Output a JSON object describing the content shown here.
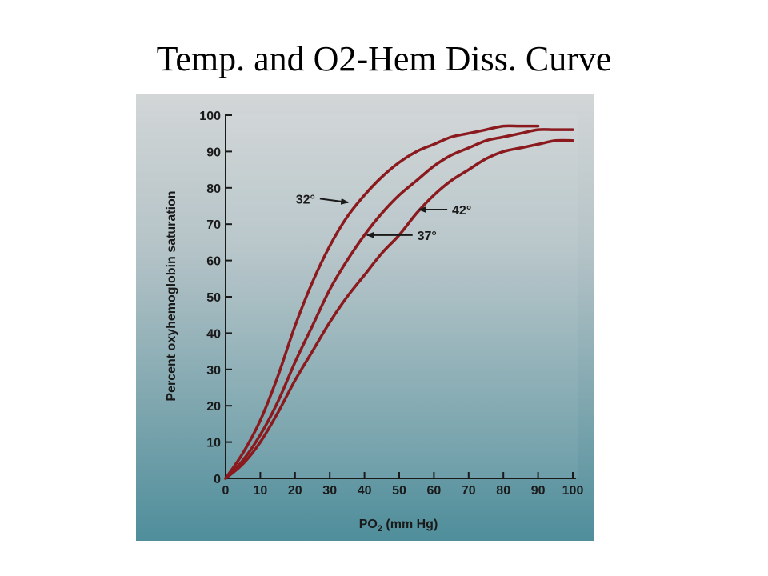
{
  "slide": {
    "title": "Temp. and O2-Hem Diss. Curve"
  },
  "chart_data": {
    "type": "line",
    "title": "",
    "xlabel": "PO2 (mm Hg)",
    "xlabel_main": "PO",
    "xlabel_sub": "2",
    "xlabel_units": " (mm Hg)",
    "ylabel": "Percent oxyhemoglobin saturation",
    "xlim": [
      0,
      100
    ],
    "ylim": [
      0,
      100
    ],
    "x_ticks": [
      "0",
      "10",
      "20",
      "30",
      "40",
      "50",
      "60",
      "70",
      "80",
      "90",
      "100"
    ],
    "y_ticks": [
      "0",
      "10",
      "20",
      "30",
      "40",
      "50",
      "60",
      "70",
      "80",
      "90",
      "100"
    ],
    "grid": false,
    "colors": {
      "curve": "#8b1a1f",
      "panel_top": "#d2d6d7",
      "panel_bottom": "#4f8e9b",
      "axis": "#1a1a1a"
    },
    "series": [
      {
        "name": "32°",
        "x": [
          0,
          5,
          10,
          15,
          20,
          25,
          30,
          35,
          40,
          45,
          50,
          55,
          60,
          65,
          70,
          75,
          80,
          85,
          90
        ],
        "values": [
          0,
          7,
          16,
          28,
          42,
          54,
          64,
          72,
          78,
          83,
          87,
          90,
          92,
          94,
          95,
          96,
          97,
          97,
          97
        ]
      },
      {
        "name": "37°",
        "x": [
          0,
          5,
          10,
          15,
          20,
          25,
          30,
          35,
          40,
          45,
          50,
          55,
          60,
          65,
          70,
          75,
          80,
          85,
          90,
          95,
          100
        ],
        "values": [
          0,
          5,
          12,
          21,
          32,
          42,
          52,
          60,
          67,
          73,
          78,
          82,
          86,
          89,
          91,
          93,
          94,
          95,
          96,
          96,
          96
        ]
      },
      {
        "name": "42°",
        "x": [
          0,
          5,
          10,
          15,
          20,
          25,
          30,
          35,
          40,
          45,
          50,
          55,
          60,
          65,
          70,
          75,
          80,
          85,
          90,
          95,
          100
        ],
        "values": [
          0,
          4,
          10,
          18,
          27,
          35,
          43,
          50,
          56,
          62,
          67,
          73,
          78,
          82,
          85,
          88,
          90,
          91,
          92,
          93,
          93
        ]
      }
    ],
    "annotations": [
      {
        "text": "32°",
        "series": "32°",
        "point_x": 36,
        "point_y": 76,
        "text_x": 23,
        "text_y": 77,
        "side": "left"
      },
      {
        "text": "37°",
        "series": "37°",
        "point_x": 40,
        "point_y": 67,
        "text_x": 58,
        "text_y": 67,
        "side": "right"
      },
      {
        "text": "42°",
        "series": "42°",
        "point_x": 55,
        "point_y": 74,
        "text_x": 68,
        "text_y": 74,
        "side": "right"
      }
    ]
  }
}
